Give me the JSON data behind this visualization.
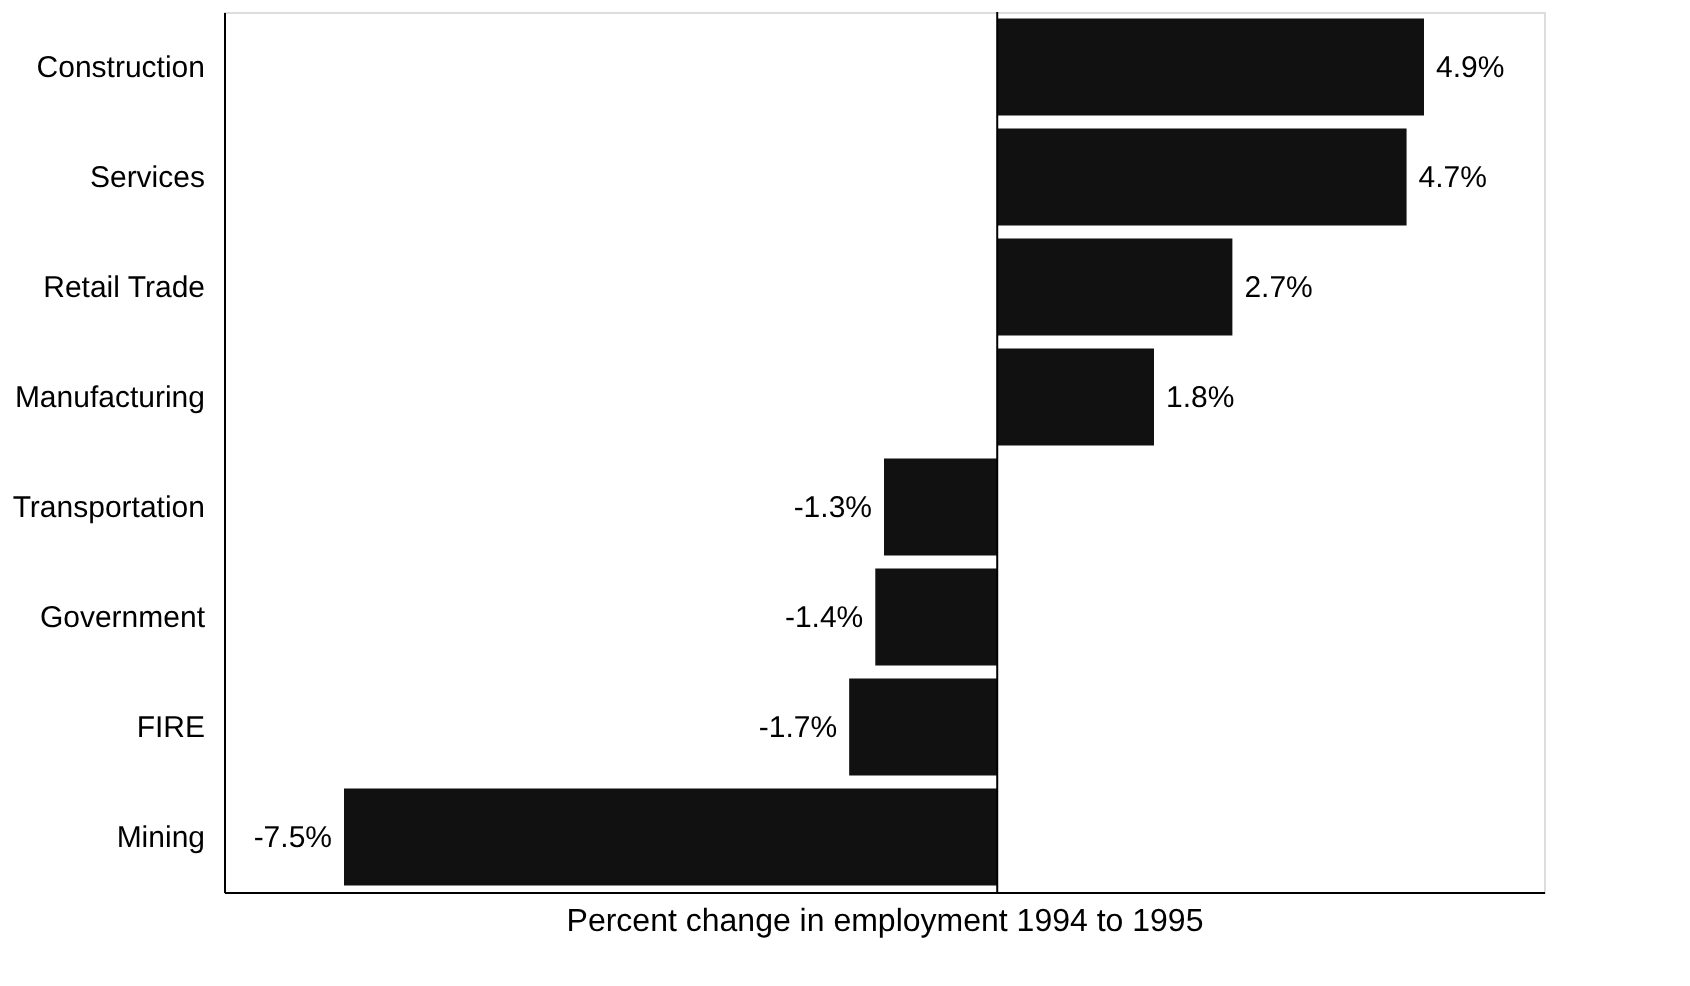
{
  "chart_data": {
    "type": "bar",
    "orientation": "horizontal",
    "xlabel": "Percent change in employment 1994 to 1995",
    "categories": [
      "Construction",
      "Services",
      "Retail Trade",
      "Manufacturing",
      "Transportation",
      "Government",
      "FIRE",
      "Mining"
    ],
    "values": [
      4.9,
      4.7,
      2.7,
      1.8,
      -1.3,
      -1.4,
      -1.7,
      -7.5
    ],
    "value_labels": [
      "4.9%",
      "4.7%",
      "2.7%",
      "1.8%",
      "-1.3%",
      "-1.4%",
      "-1.7%",
      "-7.5%"
    ],
    "color": "#111111",
    "ref_lines": [
      {
        "axis": "x",
        "value": 0,
        "color": "#000000"
      }
    ],
    "grid": false,
    "tick_labels": "y"
  }
}
